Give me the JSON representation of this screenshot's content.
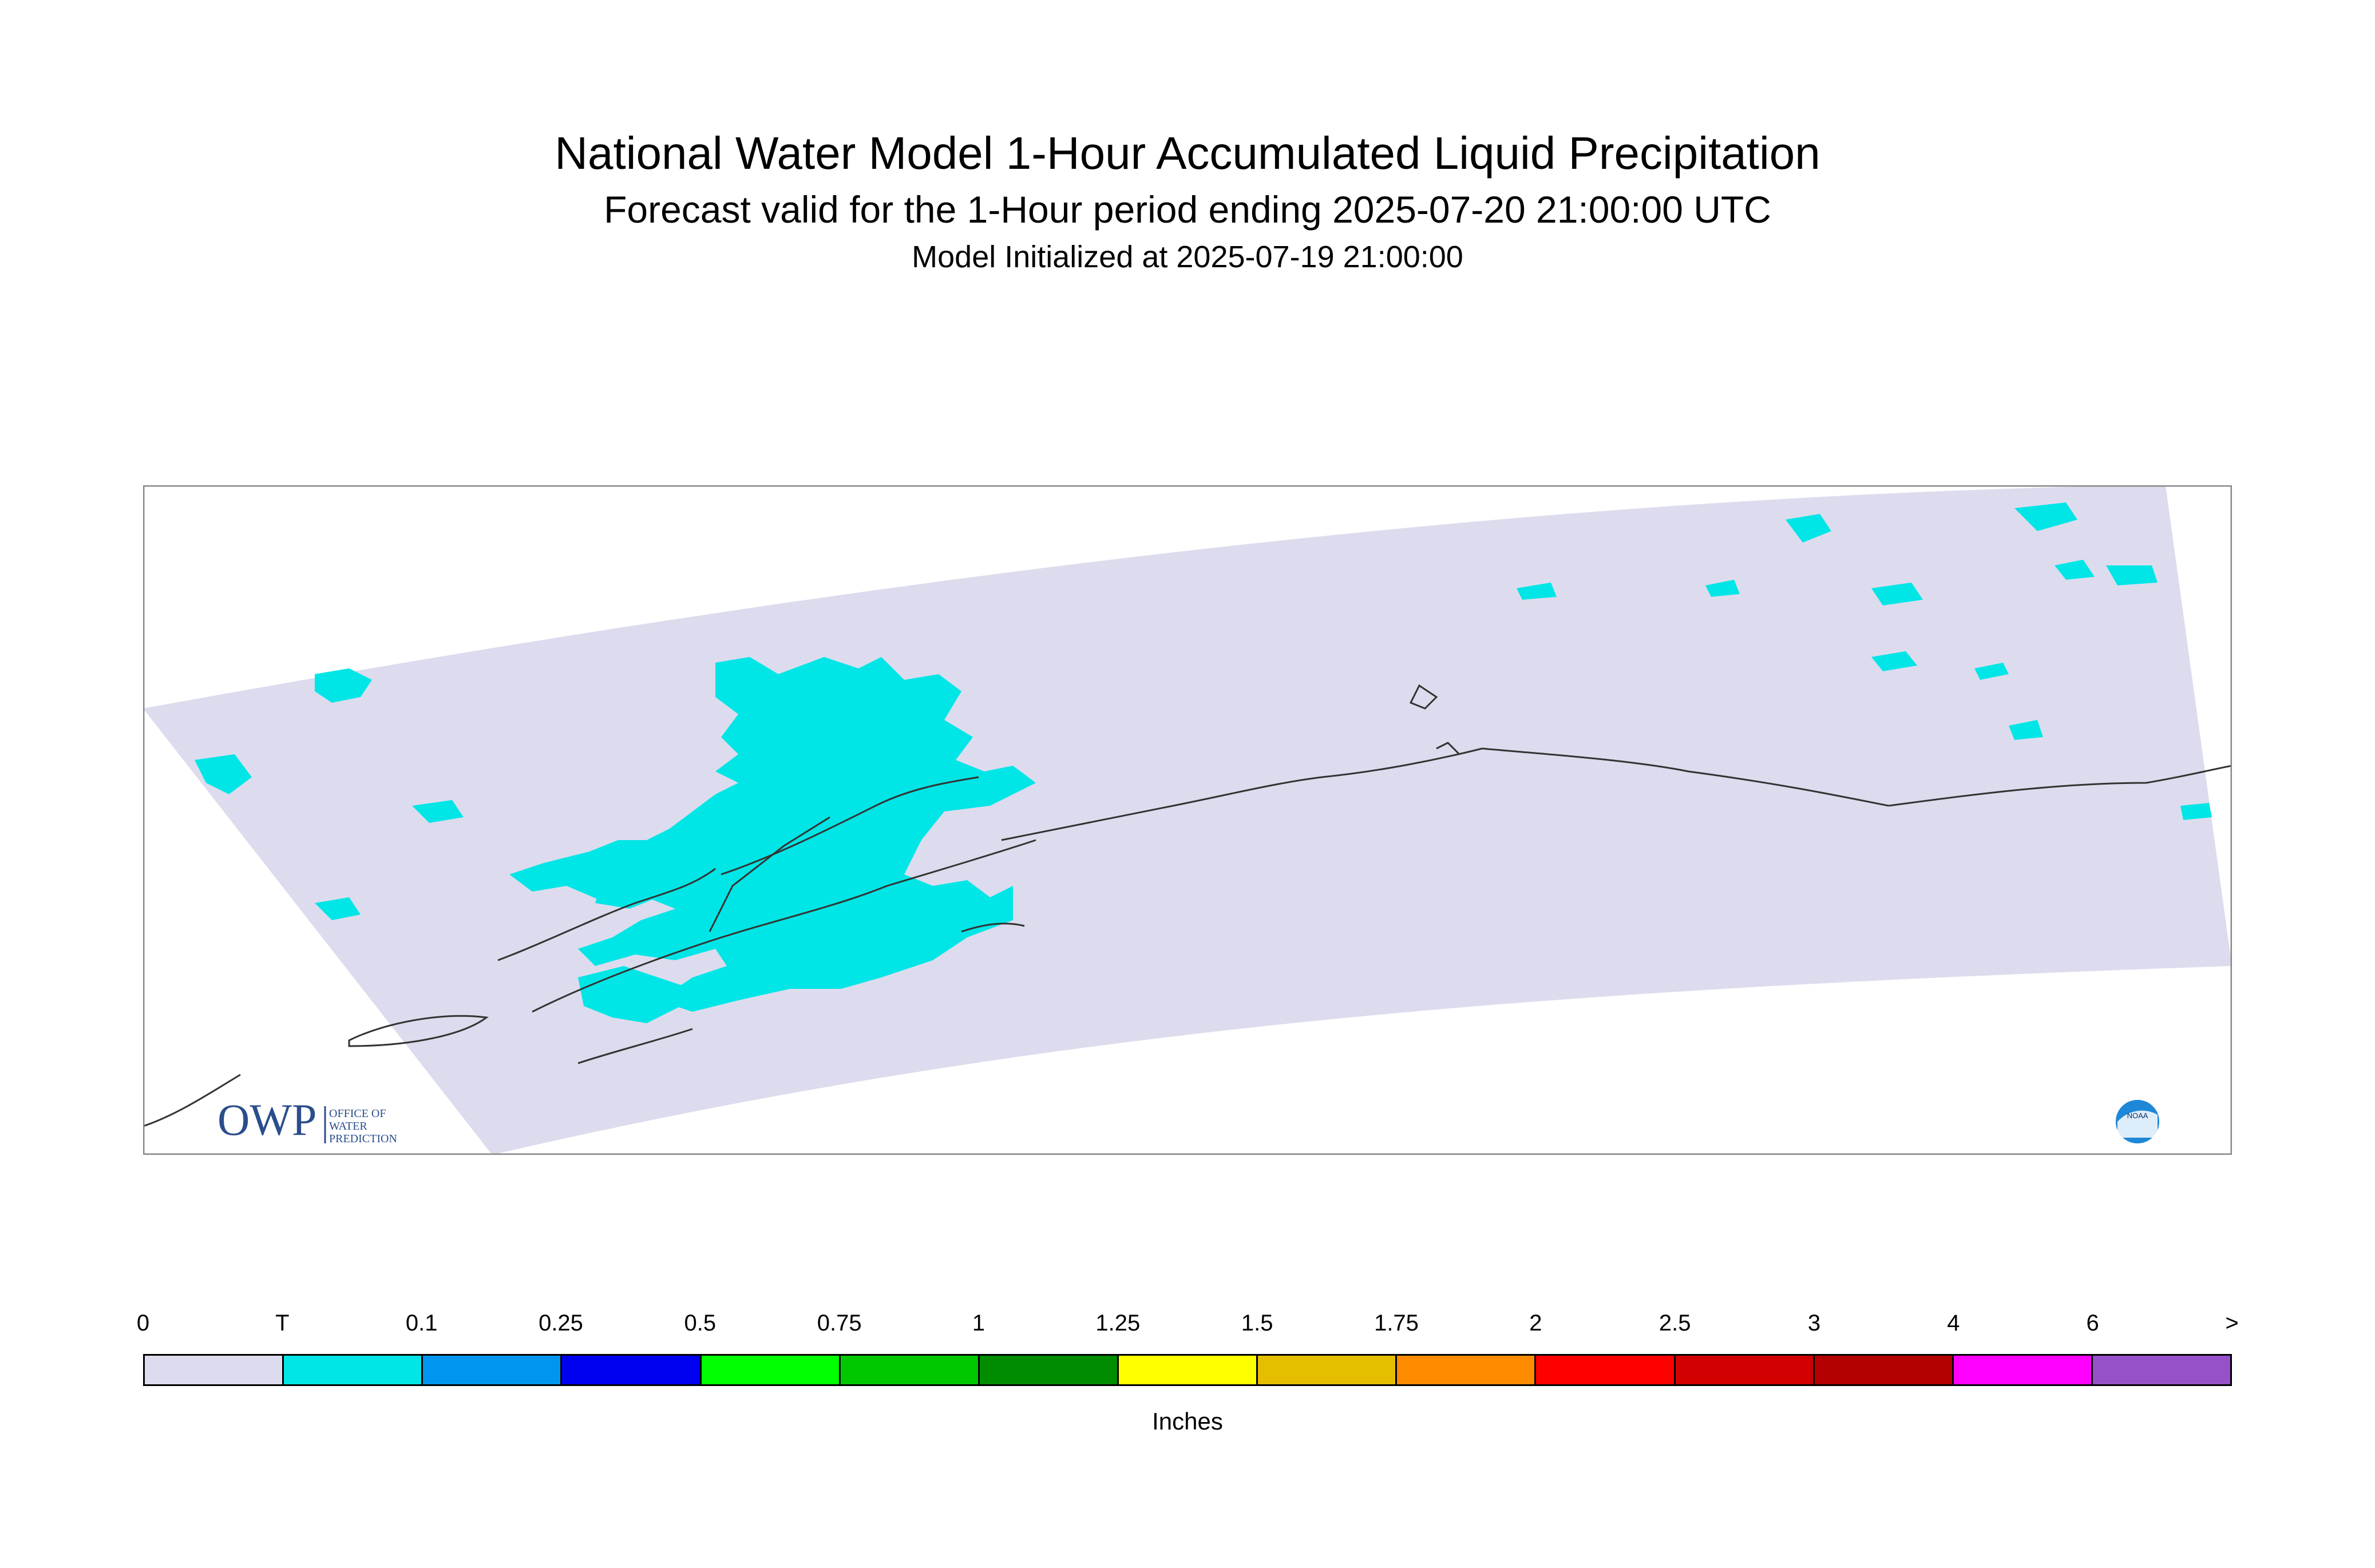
{
  "title": "National Water Model 1-Hour Accumulated Liquid Precipitation",
  "subtitle": "Forecast valid for the 1-Hour period ending 2025-07-20 21:00:00 UTC",
  "init_line": "Model Initialized at 2025-07-19 21:00:00",
  "colors": {
    "domain_fill": "#dcdcee",
    "precip_trace": "#00e6e6",
    "coastline": "#333333",
    "frame": "#888888",
    "owp_blue": "#2a4d8c",
    "noaa_blue": "#1e88d8"
  },
  "logos": {
    "owp_text": "OWP",
    "owp_sub": [
      "OFFICE OF",
      "WATER",
      "PREDICTION"
    ],
    "noaa_text": "NOAA"
  },
  "legend": {
    "labels": [
      "0",
      "T",
      "0.1",
      "0.25",
      "0.5",
      "0.75",
      "1",
      "1.25",
      "1.5",
      "1.75",
      "2",
      "2.5",
      "3",
      "4",
      "6",
      ">"
    ],
    "colors": [
      "#dcdcee",
      "#00e6e6",
      "#0096f0",
      "#0000f0",
      "#00ff00",
      "#00c800",
      "#008c00",
      "#ffff00",
      "#e6be00",
      "#ff8c00",
      "#ff0000",
      "#d20000",
      "#b40000",
      "#ff00ff",
      "#9650c8"
    ],
    "units": "Inches"
  }
}
